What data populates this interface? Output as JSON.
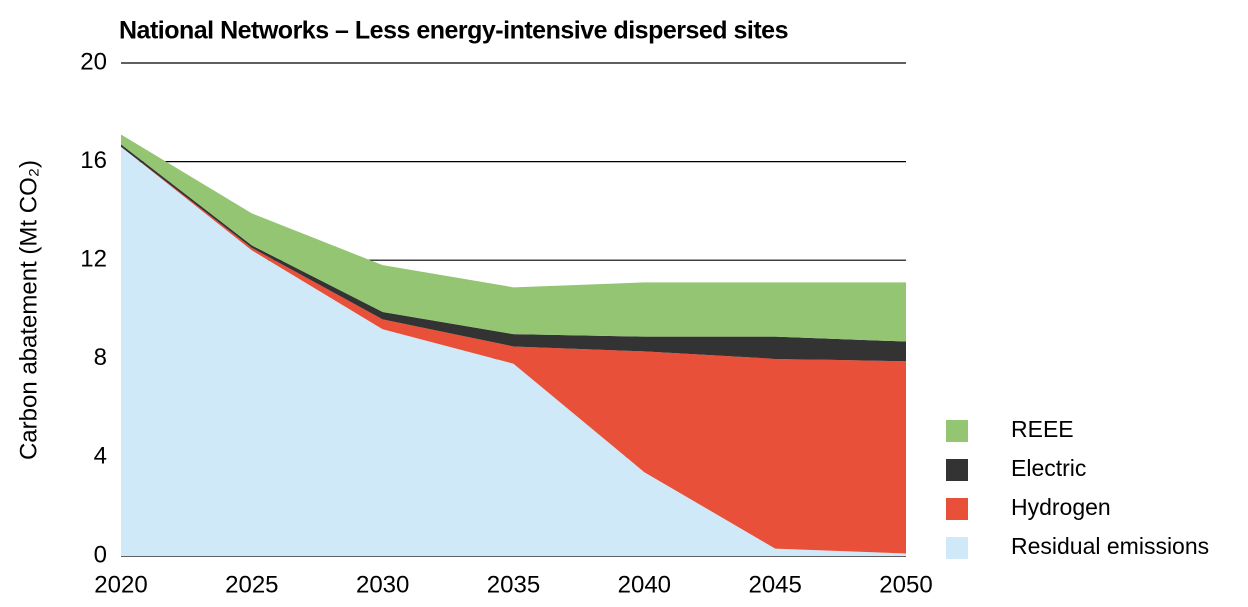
{
  "chart_data": {
    "type": "stacked-area",
    "title": "National Networks – Less energy-intensive dispersed sites",
    "ylabel": "Carbon abatement (Mt CO₂)",
    "x": [
      2020,
      2025,
      2030,
      2035,
      2040,
      2045,
      2050
    ],
    "xlim": [
      2020,
      2050
    ],
    "xticks": [
      2020,
      2025,
      2030,
      2035,
      2040,
      2045,
      2050
    ],
    "ylim": [
      0,
      20
    ],
    "yticks": [
      0,
      4,
      8,
      12,
      16,
      20
    ],
    "grid": true,
    "series": [
      {
        "name": "Residual emissions",
        "color": "#d0e9f8",
        "values": [
          16.6,
          12.4,
          9.2,
          7.8,
          3.4,
          0.3,
          0.1
        ]
      },
      {
        "name": "Hydrogen",
        "color": "#e8503a",
        "values": [
          0,
          0.1,
          0.4,
          0.7,
          4.9,
          7.7,
          7.8
        ]
      },
      {
        "name": "Electric",
        "color": "#333333",
        "values": [
          0.1,
          0.1,
          0.3,
          0.5,
          0.6,
          0.9,
          0.8
        ]
      },
      {
        "name": "REEE",
        "color": "#93c572",
        "values": [
          0.4,
          1.3,
          1.9,
          1.9,
          2.2,
          2.2,
          2.4
        ]
      }
    ]
  }
}
